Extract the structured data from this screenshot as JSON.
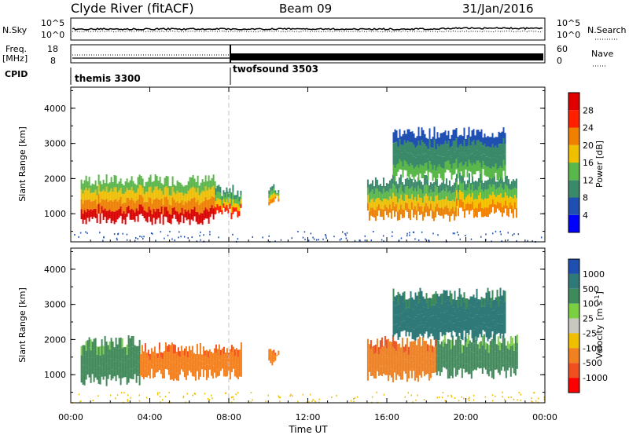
{
  "header": {
    "site": "Clyde River (fitACF)",
    "beam": "Beam 09",
    "date": "31/Jan/2016"
  },
  "top_panels": {
    "nsky_label": "N.Sky",
    "nsky_ticks": [
      "10^5",
      "10^0"
    ],
    "nsearch_label": "N.Search",
    "nsearch_ticks": [
      "10^5",
      "10^0"
    ],
    "freq_label_1": "Freq.",
    "freq_label_2": "[MHz]",
    "freq_ticks": [
      "18",
      "8"
    ],
    "nave_label": "Nave",
    "nave_ticks": [
      "60",
      "0"
    ],
    "cpid_label": "CPID",
    "cpid_segments": [
      {
        "name": "themis 3300",
        "start_hour": 0
      },
      {
        "name": "twofsound 3503",
        "start_hour": 8
      }
    ]
  },
  "chart_data": [
    {
      "type": "heatmap",
      "title": "Power",
      "ylabel": "Slant Range [km]",
      "xlabel": "Time UT",
      "xlim_hours": [
        0,
        24
      ],
      "ylim": [
        200,
        4600
      ],
      "y_ticks": [
        1000,
        2000,
        3000,
        4000
      ],
      "colorbar": {
        "label": "Power [dB]",
        "ticks": [
          4,
          8,
          12,
          16,
          20,
          24,
          28
        ],
        "colors": [
          "#0000ff",
          "#1f4fb0",
          "#3a8a6a",
          "#5ab84a",
          "#f0c000",
          "#f08000",
          "#ff2000",
          "#e00000"
        ]
      },
      "echo_regions": [
        {
          "t0": 0.5,
          "t1": 7.3,
          "r_low": 850,
          "r_high": 1950,
          "level_dB": 26
        },
        {
          "t0": 7.3,
          "t1": 8.6,
          "r_low": 1000,
          "r_high": 1650,
          "level_dB": 22
        },
        {
          "t0": 10.0,
          "t1": 10.5,
          "r_low": 1400,
          "r_high": 1700,
          "level_dB": 20
        },
        {
          "t0": 15.0,
          "t1": 19.5,
          "r_low": 950,
          "r_high": 1950,
          "level_dB": 20
        },
        {
          "t0": 19.5,
          "t1": 22.6,
          "r_low": 1050,
          "r_high": 2000,
          "level_dB": 18
        },
        {
          "t0": 16.3,
          "t1": 22.0,
          "r_low": 2100,
          "r_high": 3300,
          "level_dB": 10
        }
      ]
    },
    {
      "type": "heatmap",
      "title": "Velocity",
      "ylabel": "Slant Range [km]",
      "xlabel": "Time UT",
      "xlim_hours": [
        0,
        24
      ],
      "ylim": [
        200,
        4600
      ],
      "y_ticks": [
        1000,
        2000,
        3000,
        4000
      ],
      "colorbar": {
        "label_main": "Velocity",
        "label_unit": "[m s",
        "label_exp": "-1",
        "label_close": "]",
        "ticks": [
          "1000",
          "500",
          "100",
          "25",
          "-25",
          "-100",
          "-500",
          "-1000"
        ],
        "colors": [
          "#1f4fb0",
          "#2f7a78",
          "#3f8a5a",
          "#7ad040",
          "#c8c8c0",
          "#f0c000",
          "#f08020",
          "#f05020",
          "#ff0000"
        ]
      },
      "echo_regions": [
        {
          "t0": 0.5,
          "t1": 3.5,
          "r_low": 850,
          "r_high": 1950,
          "velocity": 400
        },
        {
          "t0": 3.5,
          "t1": 8.6,
          "r_low": 1000,
          "r_high": 1750,
          "velocity": -200
        },
        {
          "t0": 10.0,
          "t1": 10.5,
          "r_low": 1400,
          "r_high": 1700,
          "velocity": -200
        },
        {
          "t0": 15.0,
          "t1": 18.5,
          "r_low": 950,
          "r_high": 1950,
          "velocity": -200
        },
        {
          "t0": 18.5,
          "t1": 22.6,
          "r_low": 1050,
          "r_high": 2000,
          "velocity": 300
        },
        {
          "t0": 16.3,
          "t1": 22.0,
          "r_low": 2100,
          "r_high": 3300,
          "velocity": 600
        }
      ]
    }
  ],
  "x_axis": {
    "ticks": [
      "00:00",
      "04:00",
      "08:00",
      "12:00",
      "16:00",
      "20:00",
      "00:00"
    ],
    "label": "Time UT"
  },
  "colors": {
    "axis": "#000000",
    "divider": "#c0c0c0"
  }
}
